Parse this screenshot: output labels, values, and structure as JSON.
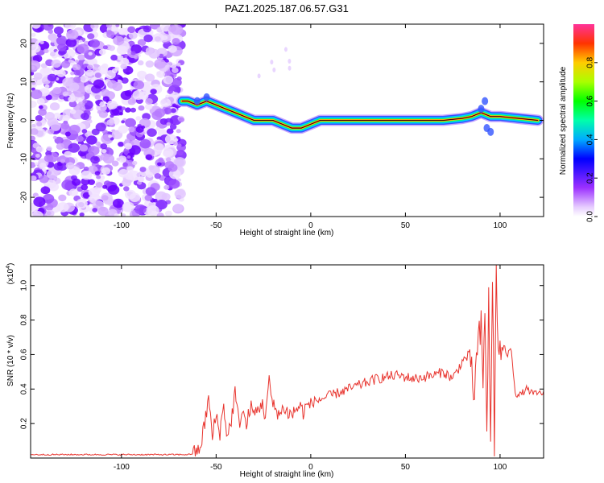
{
  "title": "PAZ1.2025.187.06.57.G31",
  "chart_data": [
    {
      "type": "heatmap",
      "xlabel": "Height of straight line (km)",
      "ylabel": "Frequency (Hz)",
      "xlim": [
        -148,
        123
      ],
      "ylim": [
        -25,
        25
      ],
      "xticks": [
        -100,
        -50,
        0,
        50,
        100
      ],
      "yticks": [
        -20,
        -10,
        0,
        10,
        20
      ],
      "colorbar": {
        "label": "Normalized spectral amplitude",
        "ticks": [
          0.0,
          0.2,
          0.4,
          0.6,
          0.8
        ],
        "range": [
          0,
          1
        ]
      },
      "ridge_frequency": {
        "x": [
          -68,
          -65,
          -60,
          -55,
          -50,
          -45,
          -40,
          -35,
          -30,
          -25,
          -20,
          -15,
          -10,
          -5,
          0,
          5,
          10,
          15,
          20,
          30,
          40,
          50,
          60,
          70,
          80,
          85,
          90,
          95,
          100,
          110,
          120
        ],
        "y": [
          5,
          5,
          4,
          5,
          4,
          3,
          2,
          1,
          0,
          0,
          0,
          -1,
          -2,
          -2,
          -1,
          0,
          0,
          0,
          0,
          0,
          0,
          0,
          0,
          0,
          0.5,
          1,
          2,
          1,
          1,
          0.5,
          0
        ]
      }
    },
    {
      "type": "line",
      "xlabel": "Height of straight line (km)",
      "ylabel": "SNR (10 * v/v)",
      "scale_label": "(x10",
      "scale_exp": "4",
      "scale_close": ")",
      "xlim": [
        -148,
        123
      ],
      "ylim": [
        0,
        1.12
      ],
      "xticks": [
        -100,
        -50,
        0,
        50,
        100
      ],
      "yticks": [
        0.2,
        0.4,
        0.6,
        0.8,
        1.0
      ],
      "yticklabels": [
        "0.2",
        "0.4",
        "0.6",
        "0.8",
        "1.0"
      ],
      "color": "#e8352f",
      "series": [
        {
          "x": [
            -148,
            -120,
            -100,
            -80,
            -65,
            -60,
            -58,
            -56,
            -54,
            -52,
            -50,
            -48,
            -46,
            -44,
            -42,
            -40,
            -38,
            -36,
            -34,
            -32,
            -30,
            -28,
            -26,
            -24,
            -22,
            -20,
            -18,
            -16,
            -14,
            -12,
            -10,
            -8,
            -6,
            -4,
            -2,
            0,
            5,
            10,
            15,
            20,
            25,
            30,
            35,
            40,
            45,
            50,
            55,
            60,
            65,
            70,
            75,
            80,
            84,
            86,
            88,
            90,
            91,
            92,
            93,
            94,
            95,
            96,
            97,
            98,
            99,
            100,
            102,
            104,
            106,
            108,
            110,
            114,
            118,
            123
          ],
          "y": [
            0.02,
            0.02,
            0.02,
            0.02,
            0.02,
            0.03,
            0.08,
            0.2,
            0.35,
            0.12,
            0.25,
            0.15,
            0.3,
            0.12,
            0.22,
            0.38,
            0.2,
            0.28,
            0.18,
            0.3,
            0.25,
            0.28,
            0.32,
            0.25,
            0.44,
            0.3,
            0.28,
            0.25,
            0.3,
            0.26,
            0.25,
            0.28,
            0.3,
            0.27,
            0.3,
            0.32,
            0.34,
            0.36,
            0.38,
            0.4,
            0.42,
            0.44,
            0.46,
            0.47,
            0.48,
            0.47,
            0.46,
            0.47,
            0.48,
            0.5,
            0.46,
            0.56,
            0.6,
            0.35,
            0.62,
            0.75,
            0.4,
            0.88,
            0.2,
            0.9,
            0.06,
            1.1,
            0.1,
            1.05,
            0.65,
            0.62,
            0.64,
            0.6,
            0.63,
            0.38,
            0.36,
            0.4,
            0.37,
            0.38
          ]
        }
      ]
    }
  ]
}
